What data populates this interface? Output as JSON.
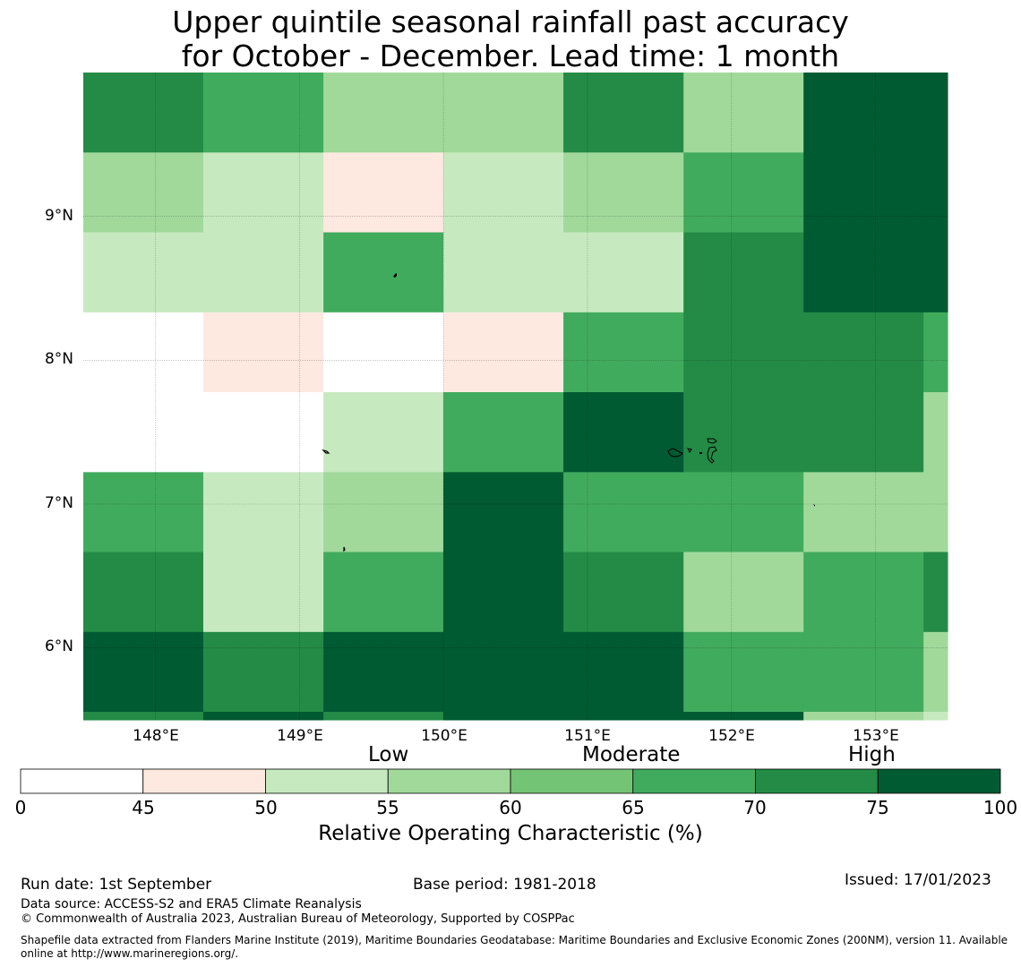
{
  "title": {
    "line1": "Upper quintile seasonal rainfall past accuracy",
    "line2": "for October - December. Lead time: 1 month"
  },
  "map": {
    "lon_range": [
      147.5,
      153.5
    ],
    "lat_range": [
      5.5,
      10.0
    ],
    "lat_ticks": [
      {
        "value": 9,
        "label": "9°N"
      },
      {
        "value": 8,
        "label": "8°N"
      },
      {
        "value": 7,
        "label": "7°N"
      },
      {
        "value": 6,
        "label": "6°N"
      }
    ],
    "lon_ticks": [
      {
        "value": 148,
        "label": "148°E"
      },
      {
        "value": 149,
        "label": "149°E"
      },
      {
        "value": 150,
        "label": "150°E"
      },
      {
        "value": 151,
        "label": "151°E"
      },
      {
        "value": 152,
        "label": "152°E"
      },
      {
        "value": 153,
        "label": "153°E"
      }
    ],
    "grid": {
      "lon_edges": [
        147.5,
        148.333,
        149.167,
        150.0,
        150.833,
        151.667,
        152.5,
        153.333,
        153.5
      ],
      "lat_edges": [
        10.0,
        9.444,
        8.889,
        8.333,
        7.778,
        7.222,
        6.667,
        6.111,
        5.556,
        5.5
      ],
      "classes": [
        [
          6,
          5,
          3,
          3,
          6,
          3,
          7,
          7
        ],
        [
          3,
          2,
          1,
          2,
          3,
          5,
          7,
          7
        ],
        [
          2,
          2,
          5,
          2,
          2,
          6,
          7,
          7
        ],
        [
          0,
          1,
          0,
          1,
          5,
          6,
          6,
          5
        ],
        [
          0,
          0,
          2,
          5,
          7,
          6,
          6,
          3
        ],
        [
          5,
          2,
          3,
          7,
          5,
          5,
          3,
          3
        ],
        [
          6,
          2,
          5,
          7,
          6,
          3,
          5,
          6
        ],
        [
          7,
          6,
          7,
          7,
          7,
          5,
          5,
          3
        ],
        [
          6,
          7,
          6,
          7,
          7,
          7,
          3,
          2
        ]
      ]
    }
  },
  "categories": {
    "low": "Low",
    "moderate": "Moderate",
    "high": "High"
  },
  "colorbar": {
    "colors": [
      "#ffffff",
      "#fde9e0",
      "#c7e9c0",
      "#a1d99b",
      "#74c476",
      "#41ab5d",
      "#238b45",
      "#005a32"
    ],
    "ticks": [
      "0",
      "45",
      "50",
      "55",
      "60",
      "65",
      "70",
      "75",
      "100"
    ],
    "label": "Relative Operating Characteristic (%)"
  },
  "footer": {
    "run_date": "Run date: 1st September",
    "base_period": "Base period: 1981-2018",
    "issued": "Issued: 17/01/2023",
    "data_source": "Data source: ACCESS-S2 and ERA5 Climate Reanalysis",
    "copyright": "© Commonwealth of Australia 2023, Australian Bureau of Meteorology, Supported by COSPPac",
    "shapefile": "Shapefile data extracted from Flanders Marine Institute (2019), Maritime Boundaries Geodatabase: Maritime Boundaries and Exclusive Economic Zones (200NM), version 11. Available online at http://www.marineregions.org/."
  }
}
